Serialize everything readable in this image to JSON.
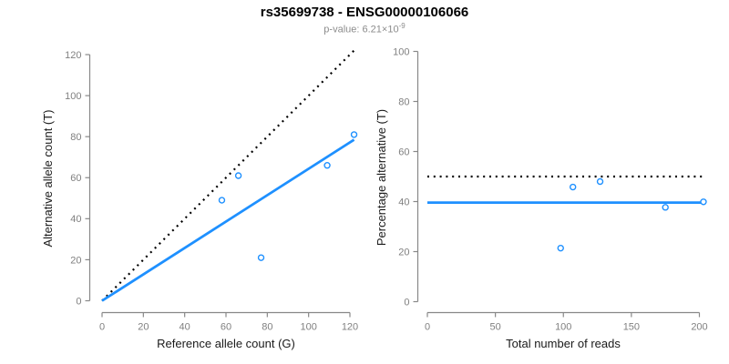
{
  "header": {
    "title": "rs35699738 - ENSG00000106066",
    "subtitle_prefix": "p-value: 6.21×10",
    "subtitle_exponent": "-9"
  },
  "colors": {
    "accent_blue": "#1E90FF",
    "dotted_line": "#000000",
    "axis_gray": "#888888",
    "tick_label_gray": "#808080",
    "axis_title_color": "#1a1a1a",
    "point_fill": "#ffffff"
  },
  "chart_data": [
    {
      "type": "scatter",
      "panel": "allele-counts",
      "xlabel": "Reference allele count (G)",
      "ylabel": "Alternative allele count (T)",
      "xlim": [
        0,
        120
      ],
      "ylim": [
        0,
        120
      ],
      "xticks": [
        0,
        20,
        40,
        60,
        80,
        100,
        120
      ],
      "yticks": [
        0,
        20,
        40,
        60,
        80,
        100,
        120
      ],
      "grid": false,
      "legend": "none",
      "points": [
        {
          "x": 58,
          "y": 49
        },
        {
          "x": 66,
          "y": 61
        },
        {
          "x": 77,
          "y": 21
        },
        {
          "x": 109,
          "y": 66
        },
        {
          "x": 122,
          "y": 81
        }
      ],
      "lines": [
        {
          "name": "identity-line",
          "style": "dotted",
          "color": "#000000",
          "from": [
            0,
            0
          ],
          "to": [
            122,
            122
          ]
        },
        {
          "name": "fit-line",
          "style": "solid",
          "color": "#1E90FF",
          "from": [
            0,
            0
          ],
          "to": [
            122,
            78.5
          ]
        }
      ]
    },
    {
      "type": "scatter",
      "panel": "percentage-alternative",
      "xlabel": "Total number of reads",
      "ylabel": "Percentage alternative (T)",
      "xlim": [
        0,
        200
      ],
      "ylim": [
        0,
        100
      ],
      "xticks": [
        0,
        50,
        100,
        150,
        200
      ],
      "yticks": [
        0,
        20,
        40,
        60,
        80,
        100
      ],
      "grid": false,
      "legend": "none",
      "points": [
        {
          "x": 98,
          "y": 21.4
        },
        {
          "x": 107,
          "y": 45.8
        },
        {
          "x": 127,
          "y": 48.0
        },
        {
          "x": 175,
          "y": 37.7
        },
        {
          "x": 203,
          "y": 39.9
        }
      ],
      "lines": [
        {
          "name": "fifty-percent-line",
          "style": "dotted",
          "color": "#000000",
          "from": [
            0,
            50
          ],
          "to": [
            202,
            50
          ]
        },
        {
          "name": "fit-line",
          "style": "solid",
          "color": "#1E90FF",
          "from": [
            0,
            39.6
          ],
          "to": [
            205,
            39.6
          ]
        }
      ]
    }
  ]
}
